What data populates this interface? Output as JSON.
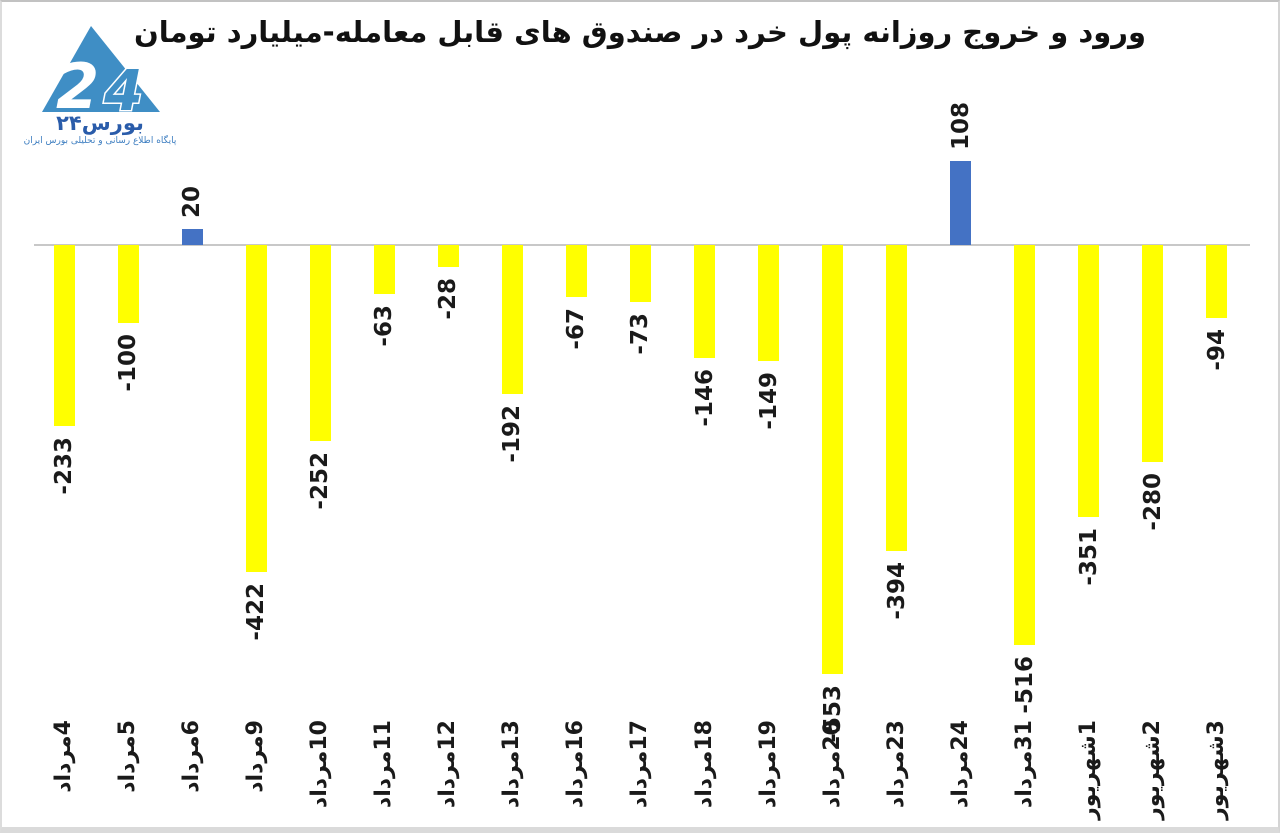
{
  "logo": {
    "name": "بورس۲۴",
    "digit2": "2",
    "digit4": "4",
    "tagline": "پایگاه اطلاع رسانی و تحلیلی بورس ایران"
  },
  "title": "ورود و خروج روزانه پول خرد در صندوق های قابل معامله-میلیارد تومان",
  "chart_data": {
    "type": "bar",
    "categories": [
      "4مرداد",
      "5مرداد",
      "6مرداد",
      "9مرداد",
      "10مرداد",
      "11مرداد",
      "12مرداد",
      "13مرداد",
      "16مرداد",
      "17مرداد",
      "18مرداد",
      "19مرداد",
      "20مرداد",
      "23مرداد",
      "24مرداد",
      "31مرداد",
      "1شهریور",
      "2شهریور",
      "3شهریور"
    ],
    "values": [
      -233,
      -100,
      20,
      -422,
      -252,
      -63,
      -28,
      -192,
      -67,
      -73,
      -146,
      -149,
      -553,
      -394,
      108,
      -516,
      -351,
      -280,
      -94
    ],
    "title": "ورود و خروج روزانه پول خرد در صندوق های قابل معامله-میلیارد تومان",
    "xlabel": "",
    "ylabel": "میلیارد تومان",
    "ylim": [
      -600,
      150
    ],
    "grid": false,
    "legend": "none",
    "positive_color": "#4472C4",
    "negative_color": "#FFFF00",
    "axis_color": "#c8c8c8",
    "label_color": "#1a1a1a"
  }
}
